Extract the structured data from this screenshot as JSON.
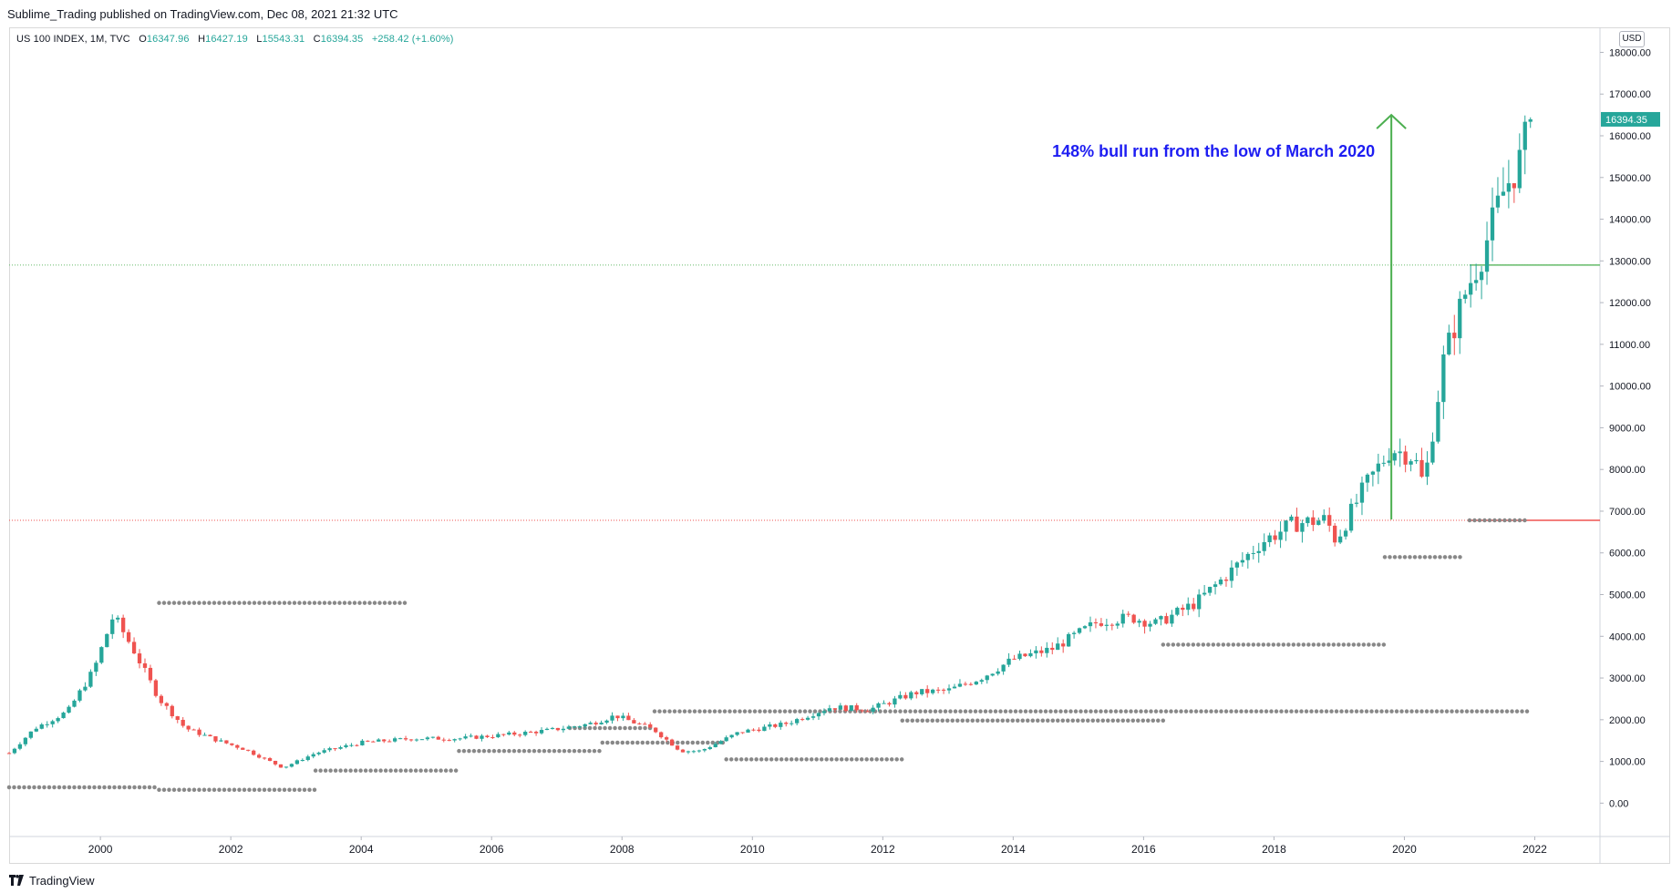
{
  "header": {
    "publish_line": "Sublime_Trading published on TradingView.com, Dec 08, 2021 21:32 UTC"
  },
  "legend": {
    "symbol": "US 100 INDEX, 1M, TVC",
    "open_label": "O",
    "open": "16347.96",
    "high_label": "H",
    "high": "16427.19",
    "low_label": "L",
    "low": "15543.31",
    "close_label": "C",
    "close": "16394.35",
    "change": "+258.42 (+1.60%)"
  },
  "currency": "USD",
  "footer": {
    "brand": "TradingView",
    "logo_icon": "tradingview-logo-icon"
  },
  "colors": {
    "up": "#26a69a",
    "down": "#ef5350",
    "annotation_text": "#1d1df2",
    "arrow": "#4caf50",
    "green_level": "#66bb6a",
    "red_level": "#ef5350",
    "dots": "#888888",
    "grid_axis": "#d1d4dc"
  },
  "chart_data": {
    "type": "candlestick",
    "timeframe": "1M",
    "x_ticks": [
      "2000",
      "2002",
      "2004",
      "2006",
      "2008",
      "2010",
      "2012",
      "2014",
      "2016",
      "2018",
      "2020",
      "2022"
    ],
    "y_ticks": [
      "0.00",
      "1000.00",
      "2000.00",
      "3000.00",
      "4000.00",
      "5000.00",
      "6000.00",
      "7000.00",
      "8000.00",
      "9000.00",
      "10000.00",
      "11000.00",
      "12000.00",
      "13000.00",
      "14000.00",
      "15000.00",
      "16000.00",
      "17000.00",
      "18000.00"
    ],
    "ylim": [
      -800,
      18600
    ],
    "xlim": [
      1998.6,
      2023.0
    ],
    "last_price_label": "16394.35",
    "annotation": "148% bull run from the low of March 2020",
    "arrow": {
      "x": 2019.8,
      "from": 6800,
      "to": 16500
    },
    "green_level": {
      "price": 12900,
      "from_x": 2021.0
    },
    "red_level": {
      "price": 6780,
      "from_x": 2021.0
    },
    "key_points": [
      [
        1998.6,
        1200
      ],
      [
        1999.0,
        1800
      ],
      [
        1999.5,
        2200
      ],
      [
        1999.9,
        3200
      ],
      [
        2000.2,
        4500
      ],
      [
        2000.5,
        3700
      ],
      [
        2000.9,
        2500
      ],
      [
        2001.3,
        1800
      ],
      [
        2001.8,
        1500
      ],
      [
        2002.2,
        1300
      ],
      [
        2002.8,
        850
      ],
      [
        2003.3,
        1200
      ],
      [
        2004.0,
        1450
      ],
      [
        2004.8,
        1550
      ],
      [
        2005.5,
        1550
      ],
      [
        2006.3,
        1650
      ],
      [
        2006.9,
        1750
      ],
      [
        2007.5,
        1900
      ],
      [
        2007.9,
        2100
      ],
      [
        2008.5,
        1750
      ],
      [
        2008.9,
        1250
      ],
      [
        2009.2,
        1250
      ],
      [
        2009.8,
        1700
      ],
      [
        2010.5,
        1900
      ],
      [
        2011.2,
        2300
      ],
      [
        2011.8,
        2250
      ],
      [
        2012.5,
        2650
      ],
      [
        2013.0,
        2700
      ],
      [
        2013.5,
        3000
      ],
      [
        2014.0,
        3450
      ],
      [
        2014.6,
        3700
      ],
      [
        2015.3,
        4350
      ],
      [
        2015.8,
        4450
      ],
      [
        2016.2,
        4300
      ],
      [
        2016.8,
        4800
      ],
      [
        2017.3,
        5500
      ],
      [
        2017.8,
        6250
      ],
      [
        2018.3,
        6700
      ],
      [
        2018.8,
        6800
      ],
      [
        2018.95,
        6300
      ],
      [
        2019.4,
        7600
      ],
      [
        2019.8,
        8500
      ],
      [
        2020.15,
        8300
      ],
      [
        2020.3,
        7600
      ],
      [
        2020.6,
        10600
      ],
      [
        2020.9,
        12100
      ],
      [
        2021.2,
        13200
      ],
      [
        2021.5,
        14600
      ],
      [
        2021.8,
        15500
      ],
      [
        2021.92,
        16394
      ]
    ],
    "dot_levels": [
      {
        "price": 4800,
        "x_from": 2000.9,
        "x_to": 2004.7
      },
      {
        "price": 380,
        "x_from": 1998.6,
        "x_to": 2000.9
      },
      {
        "price": 320,
        "x_from": 2000.9,
        "x_to": 2003.3
      },
      {
        "price": 780,
        "x_from": 2003.3,
        "x_to": 2005.5
      },
      {
        "price": 1250,
        "x_from": 2005.5,
        "x_to": 2007.7
      },
      {
        "price": 1450,
        "x_from": 2007.7,
        "x_to": 2009.6
      },
      {
        "price": 1050,
        "x_from": 2009.6,
        "x_to": 2012.3
      },
      {
        "price": 2200,
        "x_from": 2008.5,
        "x_to": 2021.9
      },
      {
        "price": 1980,
        "x_from": 2012.3,
        "x_to": 2016.3
      },
      {
        "price": 3800,
        "x_from": 2016.3,
        "x_to": 2019.7
      },
      {
        "price": 5900,
        "x_from": 2019.7,
        "x_to": 2020.9
      },
      {
        "price": 6780,
        "x_from": 2021.0,
        "x_to": 2021.9
      },
      {
        "price": 1800,
        "x_from": 2007.2,
        "x_to": 2008.5
      }
    ]
  }
}
